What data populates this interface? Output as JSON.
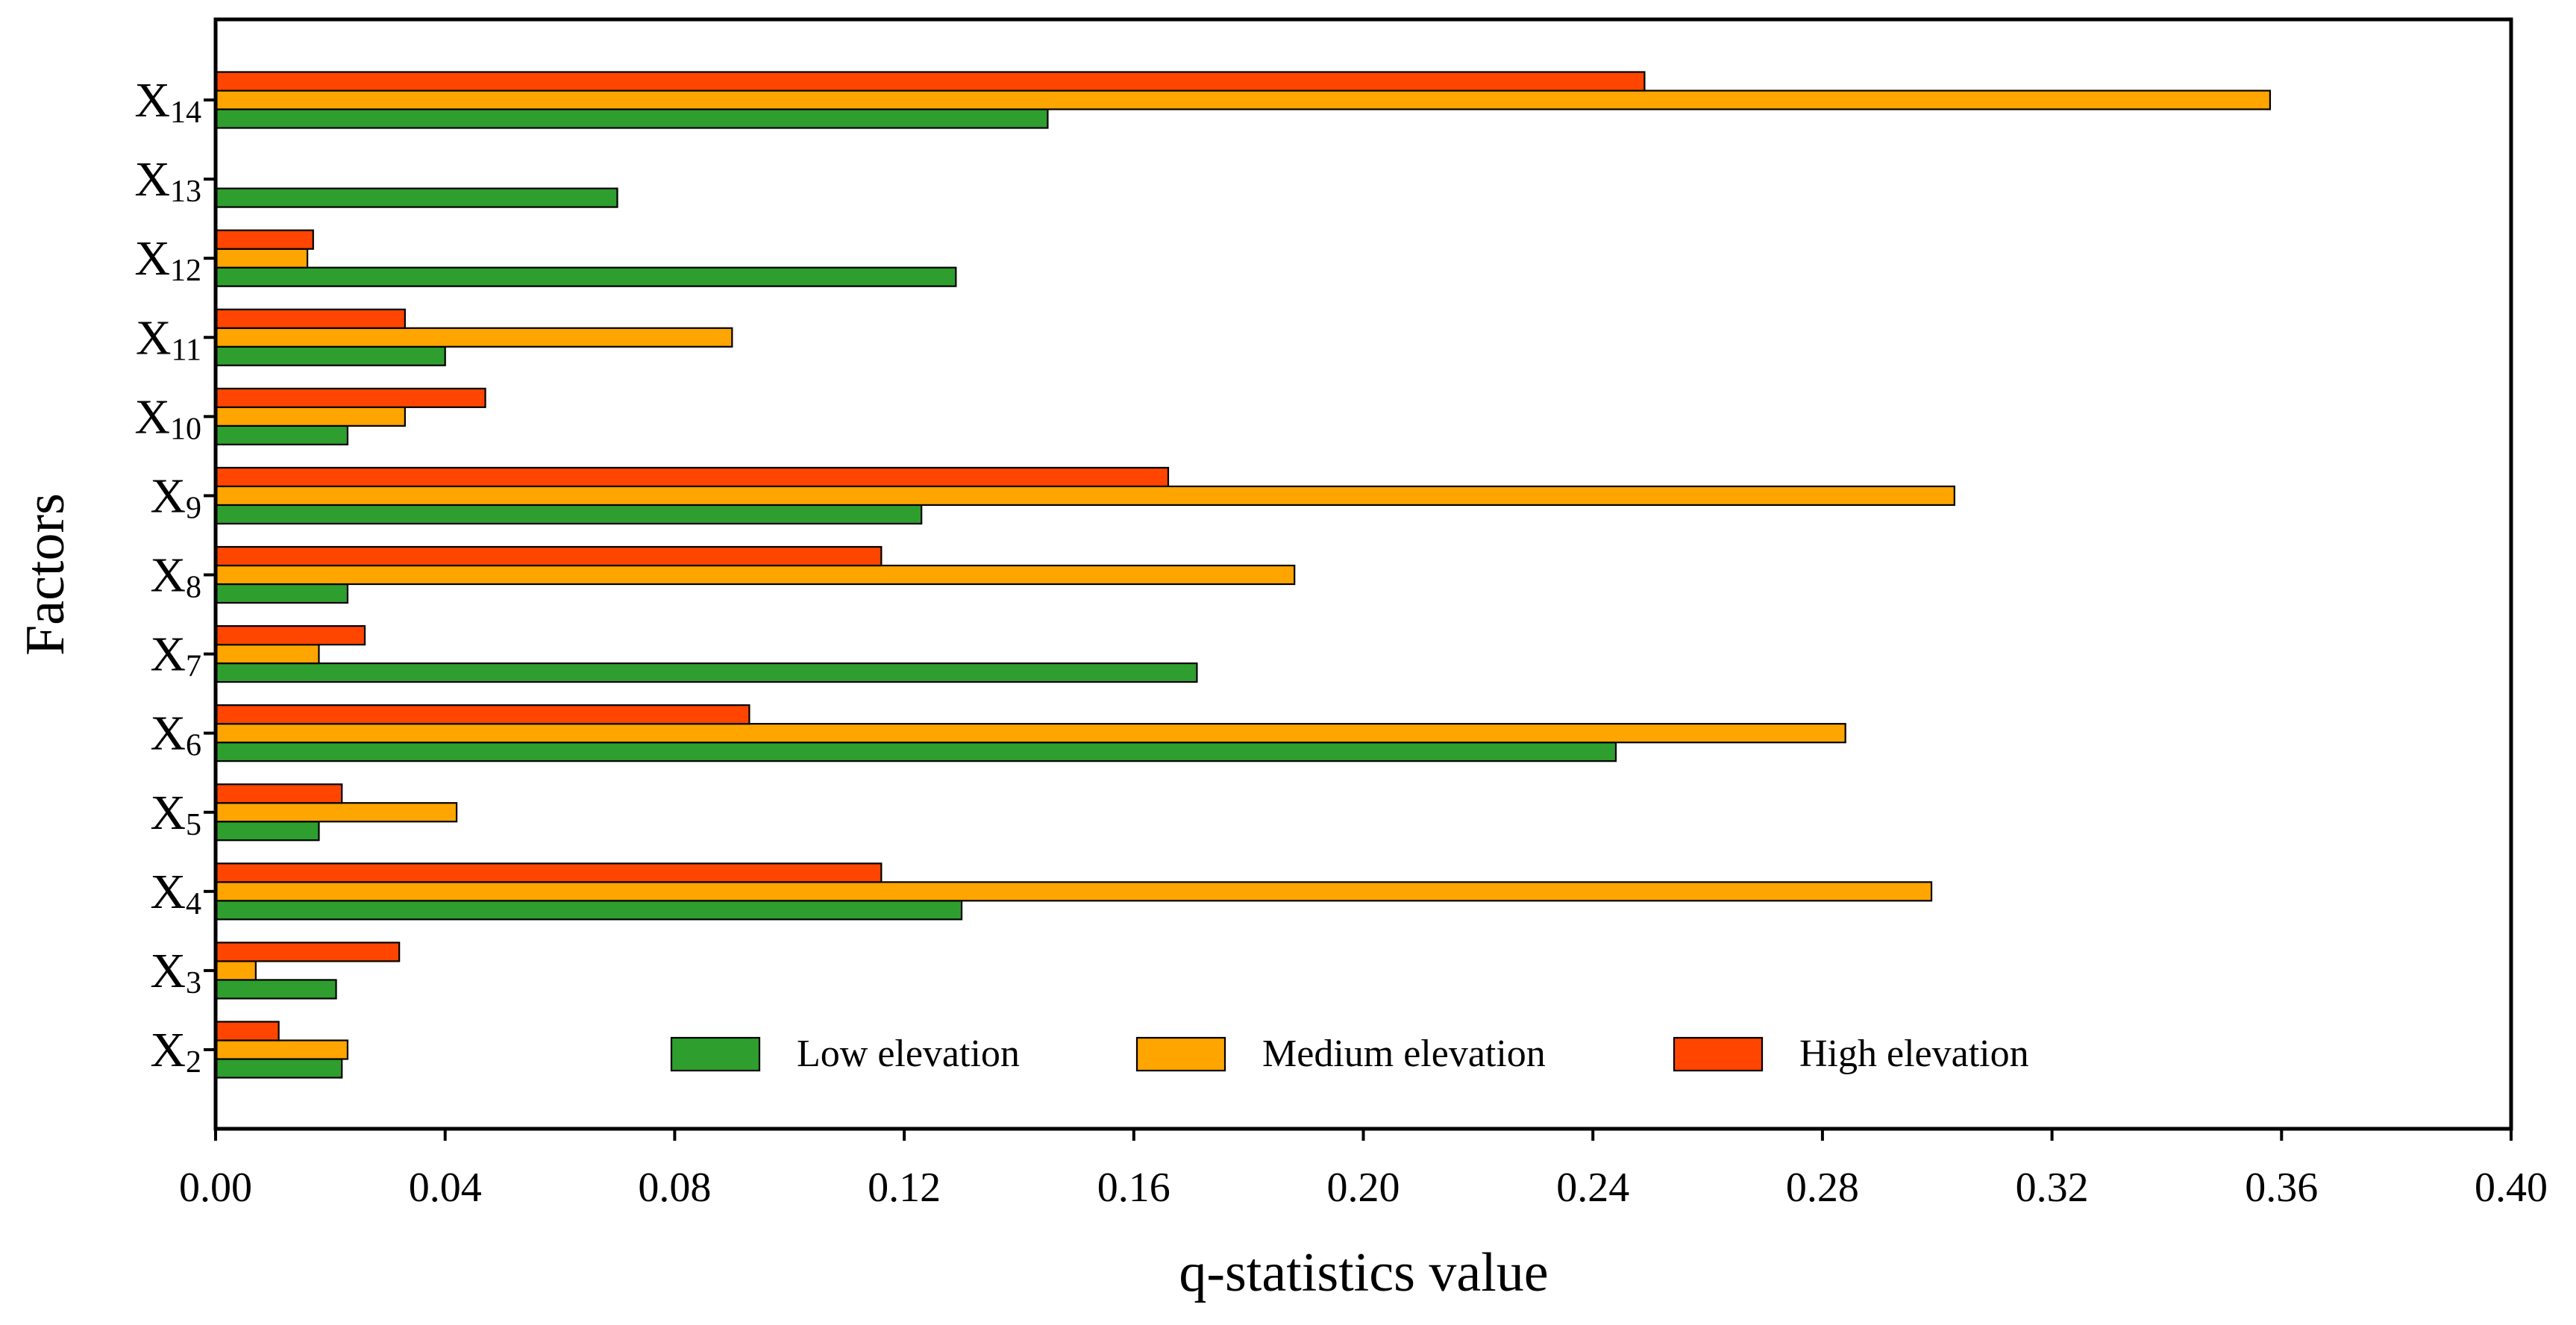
{
  "chart_data": {
    "type": "bar",
    "orientation": "horizontal",
    "title": "",
    "xlabel": "q-statistics value",
    "ylabel": "Factors",
    "xlim": [
      0,
      0.4
    ],
    "xticks": [
      "0.00",
      "0.04",
      "0.08",
      "0.12",
      "0.16",
      "0.20",
      "0.24",
      "0.28",
      "0.32",
      "0.36",
      "0.40"
    ],
    "categories": [
      {
        "base": "X",
        "sub": "2"
      },
      {
        "base": "X",
        "sub": "3"
      },
      {
        "base": "X",
        "sub": "4"
      },
      {
        "base": "X",
        "sub": "5"
      },
      {
        "base": "X",
        "sub": "6"
      },
      {
        "base": "X",
        "sub": "7"
      },
      {
        "base": "X",
        "sub": "8"
      },
      {
        "base": "X",
        "sub": "9"
      },
      {
        "base": "X",
        "sub": "10"
      },
      {
        "base": "X",
        "sub": "11"
      },
      {
        "base": "X",
        "sub": "12"
      },
      {
        "base": "X",
        "sub": "13"
      },
      {
        "base": "X",
        "sub": "14"
      }
    ],
    "series": [
      {
        "name": "Low elevation",
        "color": "#2e9e2e",
        "values": [
          0.022,
          0.021,
          0.13,
          0.018,
          0.244,
          0.171,
          0.023,
          0.123,
          0.023,
          0.04,
          0.129,
          0.07,
          0.145
        ]
      },
      {
        "name": "Medium elevation",
        "color": "#ffa500",
        "values": [
          0.023,
          0.007,
          0.299,
          0.042,
          0.284,
          0.018,
          0.188,
          0.303,
          0.033,
          0.09,
          0.016,
          0,
          0.358
        ]
      },
      {
        "name": "High elevation",
        "color": "#ff4500",
        "values": [
          0.011,
          0.032,
          0.116,
          0.022,
          0.093,
          0.026,
          0.116,
          0.166,
          0.047,
          0.033,
          0.017,
          0,
          0.249
        ]
      }
    ],
    "legend_position": "bottom-center",
    "grid": false
  }
}
